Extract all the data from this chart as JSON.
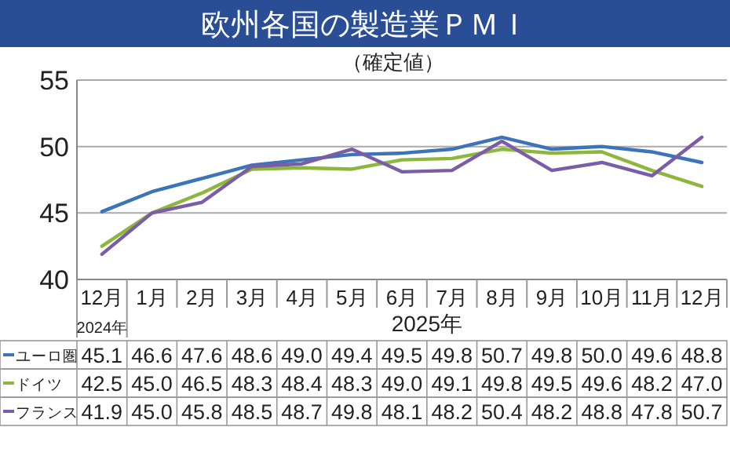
{
  "chart_data": {
    "type": "line",
    "title": "欧州各国の製造業ＰＭＩ",
    "subtitle": "（確定値）",
    "categories": [
      "12月",
      "1月",
      "2月",
      "3月",
      "4月",
      "5月",
      "6月",
      "7月",
      "8月",
      "9月",
      "10月",
      "11月",
      "12月"
    ],
    "annotations": [
      "2024年",
      "2025年"
    ],
    "series": [
      {
        "name": "ユーロ圏",
        "color": "#3b74b9",
        "values": [
          45.1,
          46.6,
          47.6,
          48.6,
          49.0,
          49.4,
          49.5,
          49.8,
          50.7,
          49.8,
          50.0,
          49.6,
          48.8
        ],
        "value_labels": [
          "45.1",
          "46.6",
          "47.6",
          "48.6",
          "49.0",
          "49.4",
          "49.5",
          "49.8",
          "50.7",
          "49.8",
          "50.0",
          "49.6",
          "48.8"
        ]
      },
      {
        "name": "ドイツ",
        "color": "#8db63c",
        "values": [
          42.5,
          45.0,
          46.5,
          48.3,
          48.4,
          48.3,
          49.0,
          49.1,
          49.8,
          49.5,
          49.6,
          48.2,
          47.0
        ],
        "value_labels": [
          "42.5",
          "45.0",
          "46.5",
          "48.3",
          "48.4",
          "48.3",
          "49.0",
          "49.1",
          "49.8",
          "49.5",
          "49.6",
          "48.2",
          "47.0"
        ]
      },
      {
        "name": "フランス",
        "color": "#7b5ca7",
        "values": [
          41.9,
          45.0,
          45.8,
          48.5,
          48.7,
          49.8,
          48.1,
          48.2,
          50.4,
          48.2,
          48.8,
          47.8,
          50.7
        ],
        "value_labels": [
          "41.9",
          "45.0",
          "45.8",
          "48.5",
          "48.7",
          "49.8",
          "48.1",
          "48.2",
          "50.4",
          "48.2",
          "48.8",
          "47.8",
          "50.7"
        ]
      }
    ],
    "ylim": [
      40,
      55
    ],
    "yticks": [
      40,
      45,
      50,
      55
    ],
    "grid": "y",
    "legend": "bottom",
    "marker": "none",
    "line_style": "solid"
  }
}
